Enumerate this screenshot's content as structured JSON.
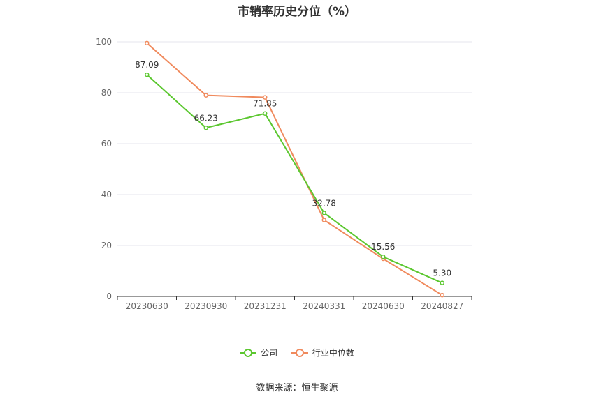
{
  "chart_data": {
    "type": "line",
    "title": "市销率历史分位（%）",
    "categories": [
      "20230630",
      "20230930",
      "20231231",
      "20240331",
      "20240630",
      "20240827"
    ],
    "ylim": [
      0,
      100
    ],
    "yticks": [
      0,
      20,
      40,
      60,
      80,
      100
    ],
    "grid": true,
    "legend_position": "bottom",
    "series": [
      {
        "name": "公司",
        "color": "#5bc72f",
        "values": [
          87.09,
          66.23,
          71.85,
          32.78,
          15.56,
          5.3
        ],
        "labels": [
          "87.09",
          "66.23",
          "71.85",
          "32.78",
          "15.56",
          "5.30"
        ]
      },
      {
        "name": "行业中位数",
        "color": "#f08a5d",
        "values": [
          99.5,
          79.0,
          78.2,
          30.0,
          14.8,
          0.5
        ]
      }
    ]
  },
  "source": "数据来源：恒生聚源"
}
